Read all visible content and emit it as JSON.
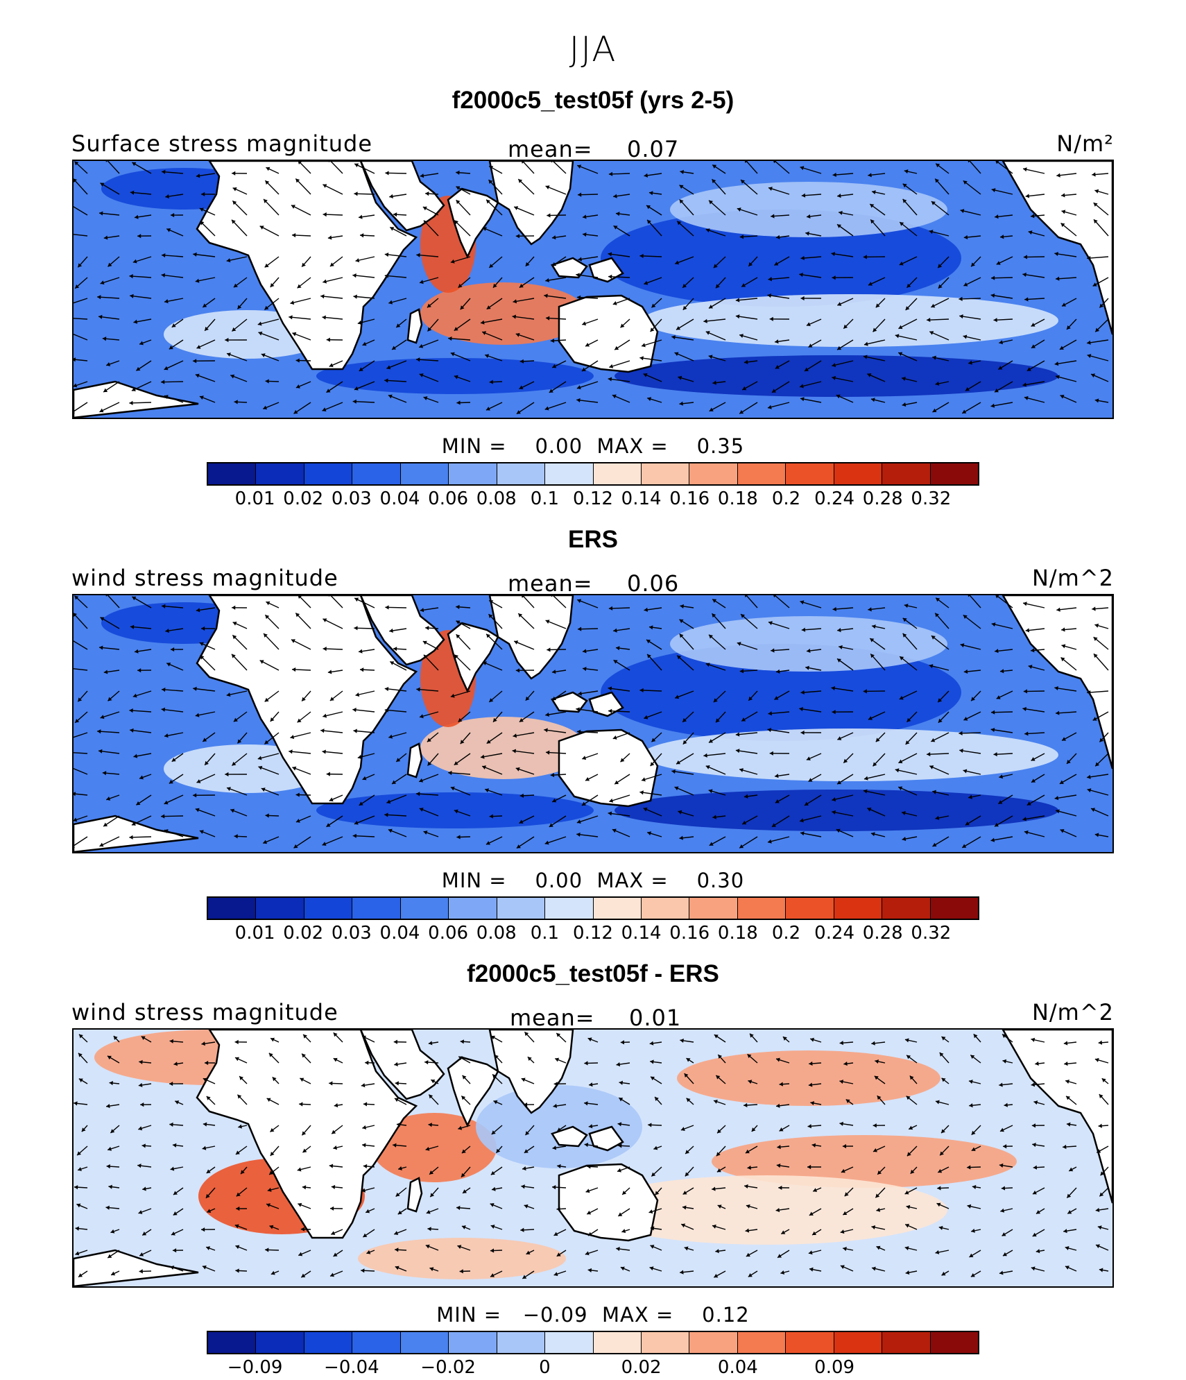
{
  "figure": {
    "season": "JJA"
  },
  "colorbar": {
    "colors": [
      "#08188f",
      "#0a2cb8",
      "#1245d8",
      "#2a62e8",
      "#4a82ef",
      "#7ea8f5",
      "#a9c6f8",
      "#d4e4fb",
      "#fde5d5",
      "#fbc7ac",
      "#f8a27f",
      "#f47a50",
      "#ec5228",
      "#d93312",
      "#b51e0a",
      "#8a0a0a"
    ]
  },
  "panels": [
    {
      "title": "f2000c5_test05f (yrs 2-5)",
      "left_label": "Surface stress magnitude",
      "mean_label": "mean=",
      "mean_value": "0.07",
      "units": "N/m²",
      "min_label": "MIN =",
      "min_value": "0.00",
      "max_label": "MAX =",
      "max_value": "0.35",
      "ticks": [
        "0.01",
        "0.02",
        "0.03",
        "0.04",
        "0.06",
        "0.08",
        "0.1",
        "0.12",
        "0.14",
        "0.16",
        "0.18",
        "0.2",
        "0.24",
        "0.28",
        "0.32"
      ]
    },
    {
      "title": "ERS",
      "left_label": "wind stress magnitude",
      "mean_label": "mean=",
      "mean_value": "0.06",
      "units": "N/m^2",
      "min_label": "MIN =",
      "min_value": "0.00",
      "max_label": "MAX =",
      "max_value": "0.30",
      "ticks": [
        "0.01",
        "0.02",
        "0.03",
        "0.04",
        "0.06",
        "0.08",
        "0.1",
        "0.12",
        "0.14",
        "0.16",
        "0.18",
        "0.2",
        "0.24",
        "0.28",
        "0.32"
      ]
    },
    {
      "title": "f2000c5_test05f - ERS",
      "left_label": "wind stress magnitude",
      "mean_label": "mean=",
      "mean_value": "0.01",
      "units": "N/m^2",
      "min_label": "MIN =",
      "min_value": "−0.09",
      "max_label": "MAX =",
      "max_value": "0.12",
      "ticks": [
        "−0.09",
        "",
        "−0.04",
        "",
        "−0.02",
        "",
        "0",
        "",
        "0.02",
        "",
        "0.04",
        "",
        "0.09",
        "",
        ""
      ]
    }
  ]
}
